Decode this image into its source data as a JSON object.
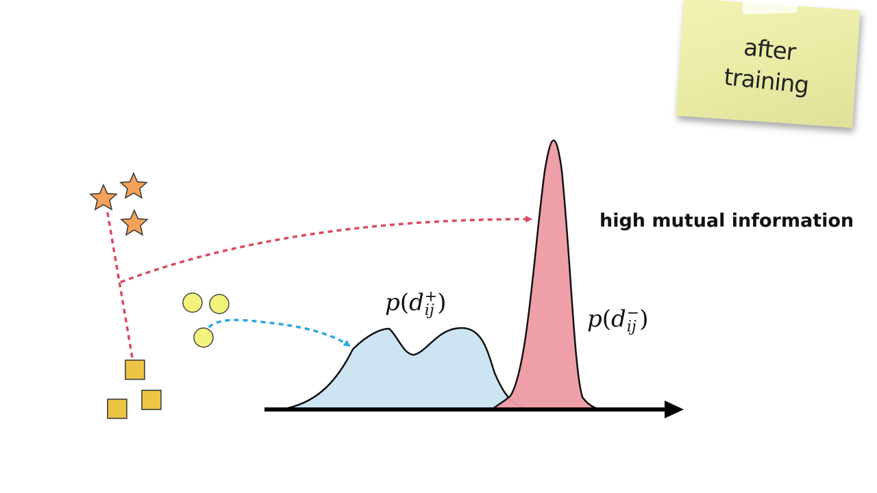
{
  "note": {
    "text_line1": "after",
    "text_line2": "training"
  },
  "headline": "high mutual information",
  "distributions": {
    "positive": {
      "func": "p",
      "var": "d",
      "sup": "+",
      "sub": "ij",
      "fill": "#cde5f3",
      "stroke": "#111111"
    },
    "negative": {
      "func": "p",
      "var": "d",
      "sup": "−",
      "sub": "ij",
      "fill": "#ee9aa3",
      "stroke": "#111111"
    }
  },
  "colors": {
    "star": "#f4a25a",
    "circle": "#f4f37c",
    "square": "#ecc545",
    "negative_arrow": "#d94a5e",
    "positive_arrow": "#2aa7df",
    "axis": "#000000"
  },
  "icons": {
    "star": "star-icon",
    "circle": "circle-icon",
    "square": "square-icon"
  }
}
